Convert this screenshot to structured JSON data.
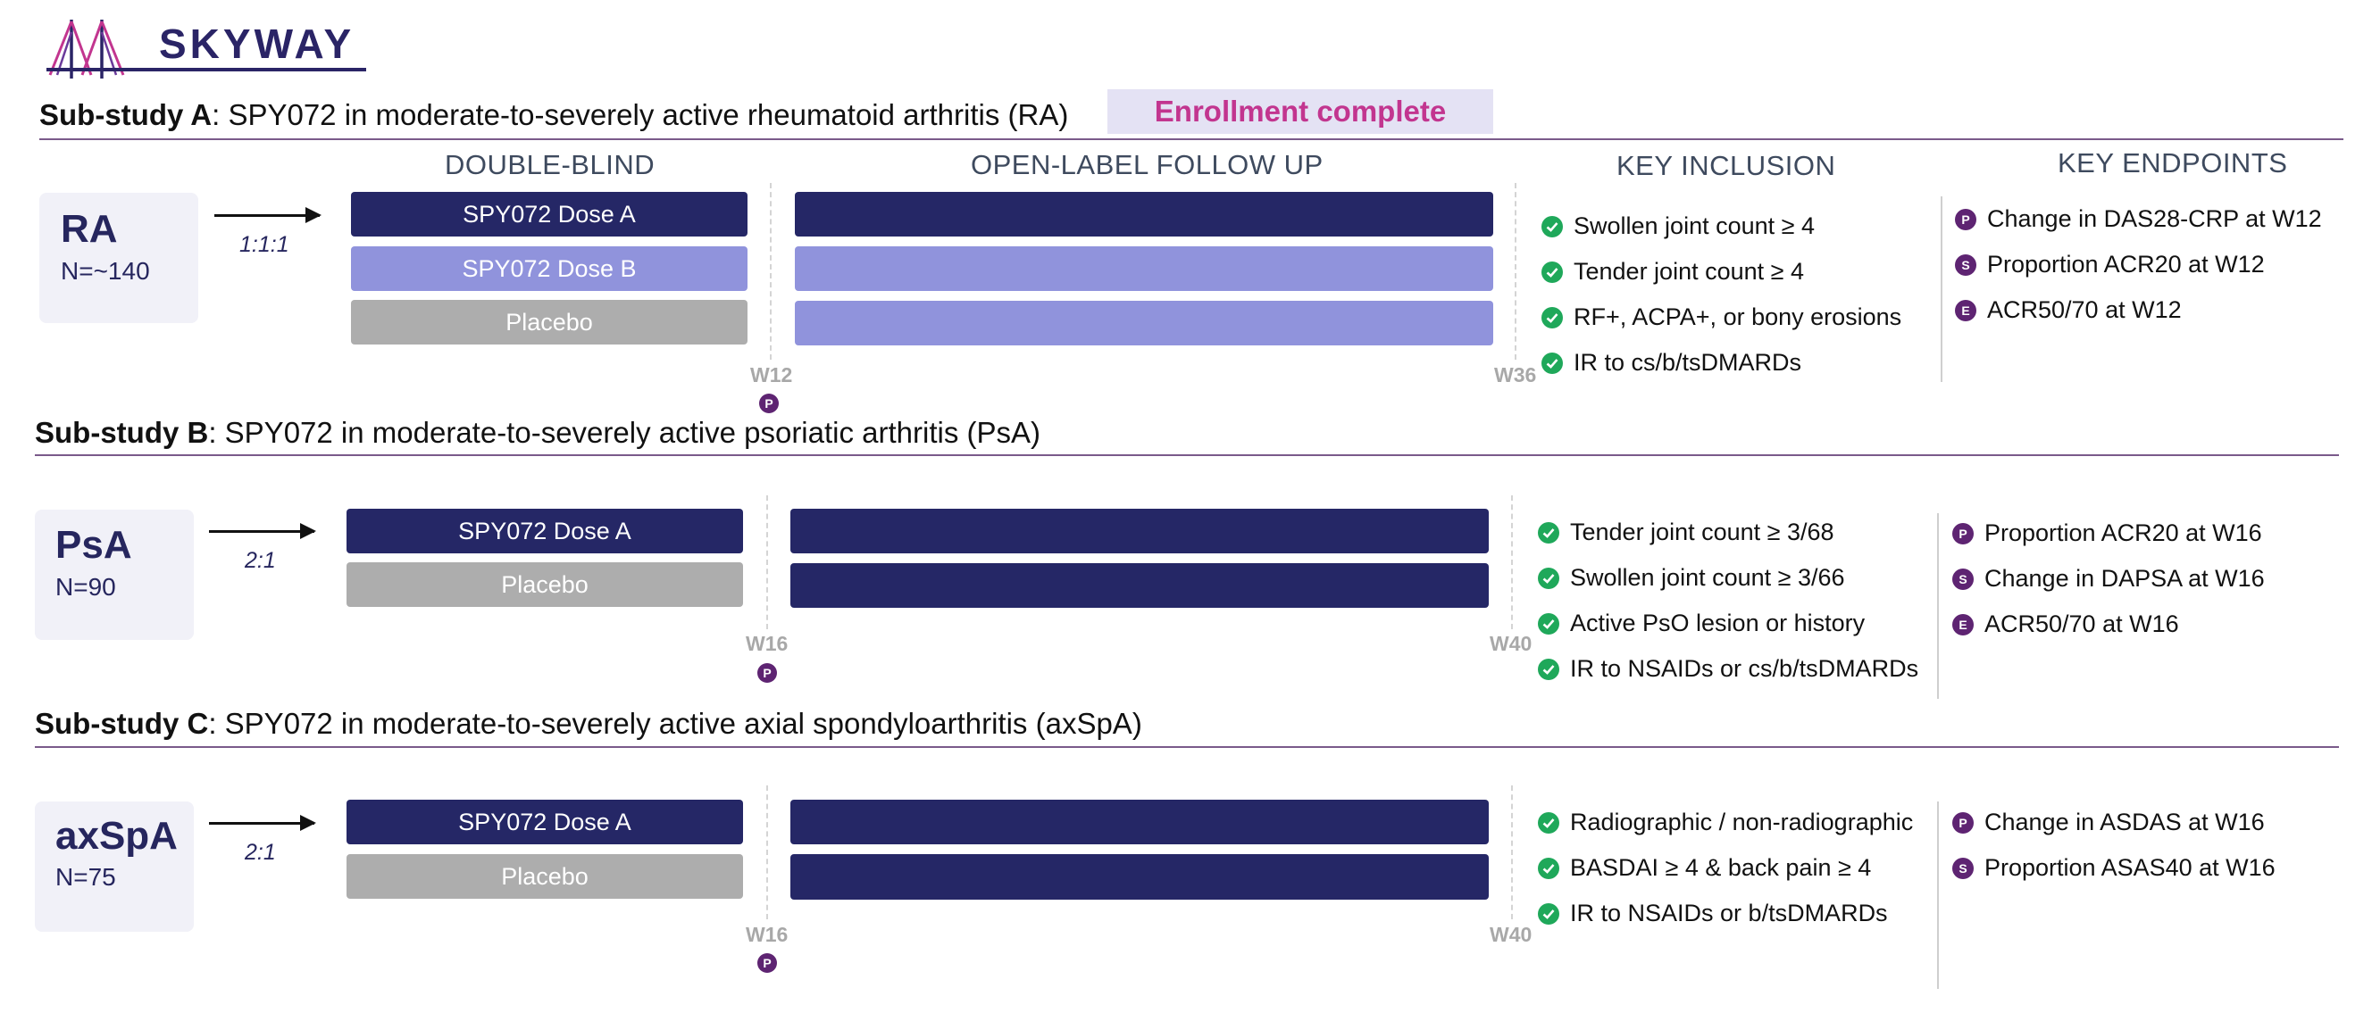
{
  "logo": {
    "text": "SKYWAY"
  },
  "colors": {
    "navy": "#252766",
    "lavender": "#9093dc",
    "gray": "#adadad",
    "check_green": "#1fa85a",
    "badge_purple": "#5e2472",
    "banner_pink": "#c2358f"
  },
  "icons": {
    "check": "check-circle-icon",
    "endpoint_badge": "letter-badge-icon",
    "arrow": "right-arrow-icon"
  },
  "banner": {
    "text": "Enrollment complete"
  },
  "columns": {
    "double_blind": "DOUBLE-BLIND",
    "open_label": "OPEN-LABEL FOLLOW UP",
    "key_inclusion": "KEY INCLUSION",
    "key_endpoints": "KEY ENDPOINTS"
  },
  "studies": {
    "a": {
      "label": "Sub-study A",
      "title": ": SPY072 in moderate-to-severely active rheumatoid arthritis (RA)",
      "indication": "RA",
      "n": "N=~140",
      "ratio": "1:1:1",
      "arms": [
        "SPY072 Dose A",
        "SPY072 Dose B",
        "Placebo"
      ],
      "week_primary": "W12",
      "week_end": "W36",
      "primary_badge": "P",
      "inclusion": [
        "Swollen joint count ≥ 4",
        "Tender joint count ≥ 4",
        "RF+, ACPA+, or bony erosions",
        "IR to cs/b/tsDMARDs"
      ],
      "endpoints": [
        {
          "badge": "P",
          "text": "Change in DAS28-CRP at W12"
        },
        {
          "badge": "S",
          "text": "Proportion ACR20 at W12"
        },
        {
          "badge": "E",
          "text": "ACR50/70 at W12"
        }
      ]
    },
    "b": {
      "label": "Sub-study B",
      "title": ": SPY072 in moderate-to-severely active psoriatic arthritis (PsA)",
      "indication": "PsA",
      "n": "N=90",
      "ratio": "2:1",
      "arms": [
        "SPY072 Dose A",
        "Placebo"
      ],
      "week_primary": "W16",
      "week_end": "W40",
      "primary_badge": "P",
      "inclusion": [
        "Tender joint count ≥ 3/68",
        "Swollen joint count ≥ 3/66",
        "Active PsO lesion or history",
        "IR to NSAIDs or cs/b/tsDMARDs"
      ],
      "endpoints": [
        {
          "badge": "P",
          "text": "Proportion ACR20 at W16"
        },
        {
          "badge": "S",
          "text": "Change in DAPSA at W16"
        },
        {
          "badge": "E",
          "text": "ACR50/70 at W16"
        }
      ]
    },
    "c": {
      "label": "Sub-study C",
      "title": ": SPY072 in moderate-to-severely active axial spondyloarthritis (axSpA)",
      "indication": "axSpA",
      "n": "N=75",
      "ratio": "2:1",
      "arms": [
        "SPY072 Dose A",
        "Placebo"
      ],
      "week_primary": "W16",
      "week_end": "W40",
      "primary_badge": "P",
      "inclusion": [
        "Radiographic / non-radiographic",
        "BASDAI ≥ 4 & back pain ≥ 4",
        "IR to NSAIDs or b/tsDMARDs"
      ],
      "endpoints": [
        {
          "badge": "P",
          "text": "Change in ASDAS at W16"
        },
        {
          "badge": "S",
          "text": "Proportion ASAS40 at W16"
        }
      ]
    }
  }
}
